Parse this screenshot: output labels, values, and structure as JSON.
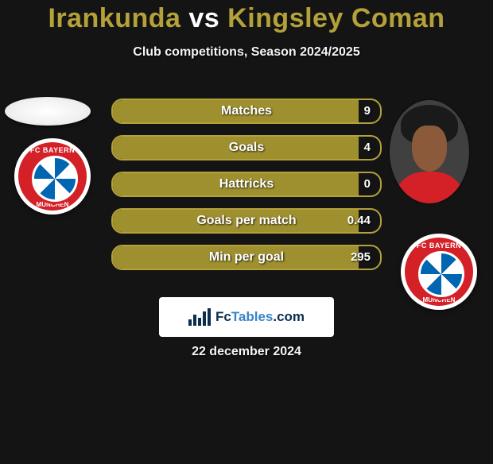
{
  "header": {
    "player1": "Irankunda",
    "vs": " vs ",
    "player2": "Kingsley Coman",
    "title_color_p1": "#b4a139",
    "title_color_vs": "#ffffff",
    "title_color_p2": "#b4a139",
    "subtitle": "Club competitions, Season 2024/2025"
  },
  "stats": {
    "bar_fill_color": "#9f902f",
    "bar_border_color": "#b4a139",
    "rows": [
      {
        "label": "Matches",
        "value": "9",
        "fill_pct": 92
      },
      {
        "label": "Goals",
        "value": "4",
        "fill_pct": 92
      },
      {
        "label": "Hattricks",
        "value": "0",
        "fill_pct": 92
      },
      {
        "label": "Goals per match",
        "value": "0.44",
        "fill_pct": 92
      },
      {
        "label": "Min per goal",
        "value": "295",
        "fill_pct": 92
      }
    ]
  },
  "badges": {
    "left_team": "FC BAYERN",
    "left_team_sub": "MÜNCHEN",
    "right_team": "FC BAYERN",
    "right_team_sub": "MÜNCHEN"
  },
  "footer": {
    "site_prefix": "Fc",
    "site_main": "Tables",
    "site_suffix": ".com",
    "date": "22 december 2024"
  },
  "colors": {
    "background": "#141414",
    "text": "#f5f5f5",
    "bayern_red": "#d42027",
    "bayern_blue": "#0066b2"
  }
}
